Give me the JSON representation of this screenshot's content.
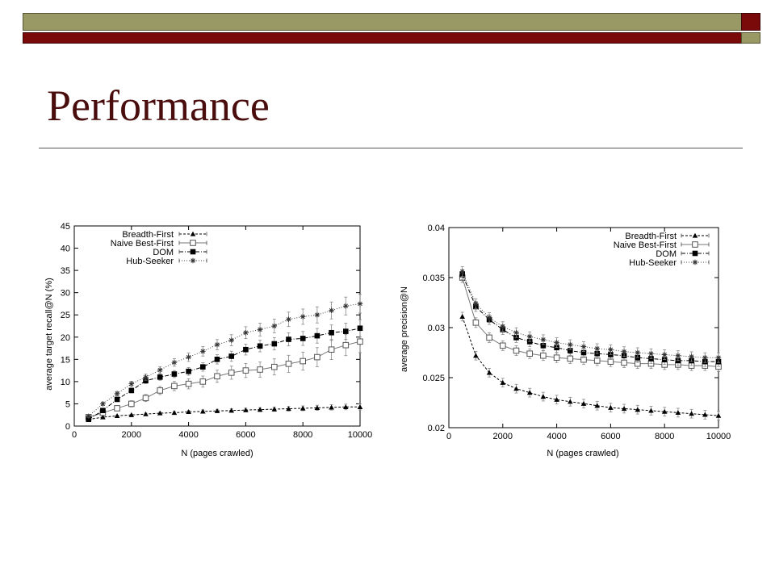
{
  "title": "Performance",
  "chart_data": [
    {
      "type": "line",
      "xlabel": "N (pages crawled)",
      "ylabel": "average target recall@N (%)",
      "xlim": [
        0,
        10000
      ],
      "ylim": [
        0,
        45
      ],
      "xticks": [
        0,
        2000,
        4000,
        6000,
        8000,
        10000
      ],
      "yticks": [
        0,
        5,
        10,
        15,
        20,
        25,
        30,
        35,
        40,
        45
      ],
      "legend_position": "top-left",
      "grid": false,
      "x": [
        500,
        1000,
        1500,
        2000,
        2500,
        3000,
        3500,
        4000,
        4500,
        5000,
        5500,
        6000,
        6500,
        7000,
        7500,
        8000,
        8500,
        9000,
        9500,
        10000
      ],
      "series": [
        {
          "name": "Breadth-First",
          "marker": "triangle",
          "values": [
            1.5,
            2.0,
            2.3,
            2.5,
            2.7,
            2.9,
            3.0,
            3.2,
            3.3,
            3.4,
            3.5,
            3.6,
            3.7,
            3.8,
            3.9,
            4.0,
            4.1,
            4.2,
            4.3,
            4.3
          ]
        },
        {
          "name": "Naive Best-First",
          "marker": "square-open",
          "values": [
            2.0,
            3.0,
            4.0,
            5.0,
            6.3,
            8.0,
            9.0,
            9.5,
            10.0,
            11.2,
            12.0,
            12.5,
            12.7,
            13.3,
            14.0,
            14.6,
            15.5,
            17.2,
            18.2,
            19.0
          ]
        },
        {
          "name": "DOM",
          "marker": "square-filled",
          "values": [
            1.5,
            3.5,
            6.0,
            8.0,
            10.2,
            11.0,
            11.7,
            12.3,
            13.3,
            15.0,
            15.7,
            17.2,
            18.0,
            18.5,
            19.5,
            19.7,
            20.3,
            21.0,
            21.3,
            22.0
          ]
        },
        {
          "name": "Hub-Seeker",
          "marker": "star",
          "values": [
            2.2,
            5.0,
            7.3,
            9.5,
            11.0,
            12.6,
            14.3,
            15.5,
            16.8,
            18.3,
            19.3,
            21.0,
            21.7,
            22.5,
            24.0,
            24.6,
            25.0,
            26.0,
            27.0,
            27.5
          ]
        }
      ]
    },
    {
      "type": "line",
      "xlabel": "N (pages crawled)",
      "ylabel": "average precision@N",
      "xlim": [
        0,
        10000
      ],
      "ylim": [
        0.02,
        0.04
      ],
      "xticks": [
        0,
        2000,
        4000,
        6000,
        8000,
        10000
      ],
      "yticks": [
        0.02,
        0.025,
        0.03,
        0.035,
        0.04
      ],
      "legend_position": "top-right",
      "grid": false,
      "x": [
        500,
        1000,
        1500,
        2000,
        2500,
        3000,
        3500,
        4000,
        4500,
        5000,
        5500,
        6000,
        6500,
        7000,
        7500,
        8000,
        8500,
        9000,
        9500,
        10000
      ],
      "series": [
        {
          "name": "Breadth-First",
          "marker": "triangle",
          "values": [
            0.0311,
            0.0272,
            0.0255,
            0.0245,
            0.0239,
            0.0235,
            0.0231,
            0.0228,
            0.0226,
            0.0224,
            0.0222,
            0.022,
            0.0219,
            0.0218,
            0.0217,
            0.0216,
            0.0215,
            0.0214,
            0.0213,
            0.0212
          ]
        },
        {
          "name": "Naive Best-First",
          "marker": "square-open",
          "values": [
            0.035,
            0.0305,
            0.029,
            0.0282,
            0.0277,
            0.0274,
            0.0272,
            0.027,
            0.0269,
            0.0268,
            0.0267,
            0.0266,
            0.0265,
            0.0264,
            0.0264,
            0.0263,
            0.0263,
            0.0262,
            0.0262,
            0.0261
          ]
        },
        {
          "name": "DOM",
          "marker": "square-filled",
          "values": [
            0.0353,
            0.0321,
            0.0308,
            0.0298,
            0.029,
            0.0286,
            0.0282,
            0.028,
            0.0277,
            0.0275,
            0.0274,
            0.0273,
            0.0272,
            0.027,
            0.0269,
            0.0268,
            0.0267,
            0.0267,
            0.0266,
            0.0266
          ]
        },
        {
          "name": "Hub-Seeker",
          "marker": "star",
          "values": [
            0.0356,
            0.0324,
            0.031,
            0.0301,
            0.0295,
            0.0291,
            0.0288,
            0.0285,
            0.0283,
            0.0281,
            0.0279,
            0.0278,
            0.0276,
            0.0275,
            0.0274,
            0.0273,
            0.0272,
            0.0271,
            0.027,
            0.027
          ]
        }
      ]
    }
  ]
}
